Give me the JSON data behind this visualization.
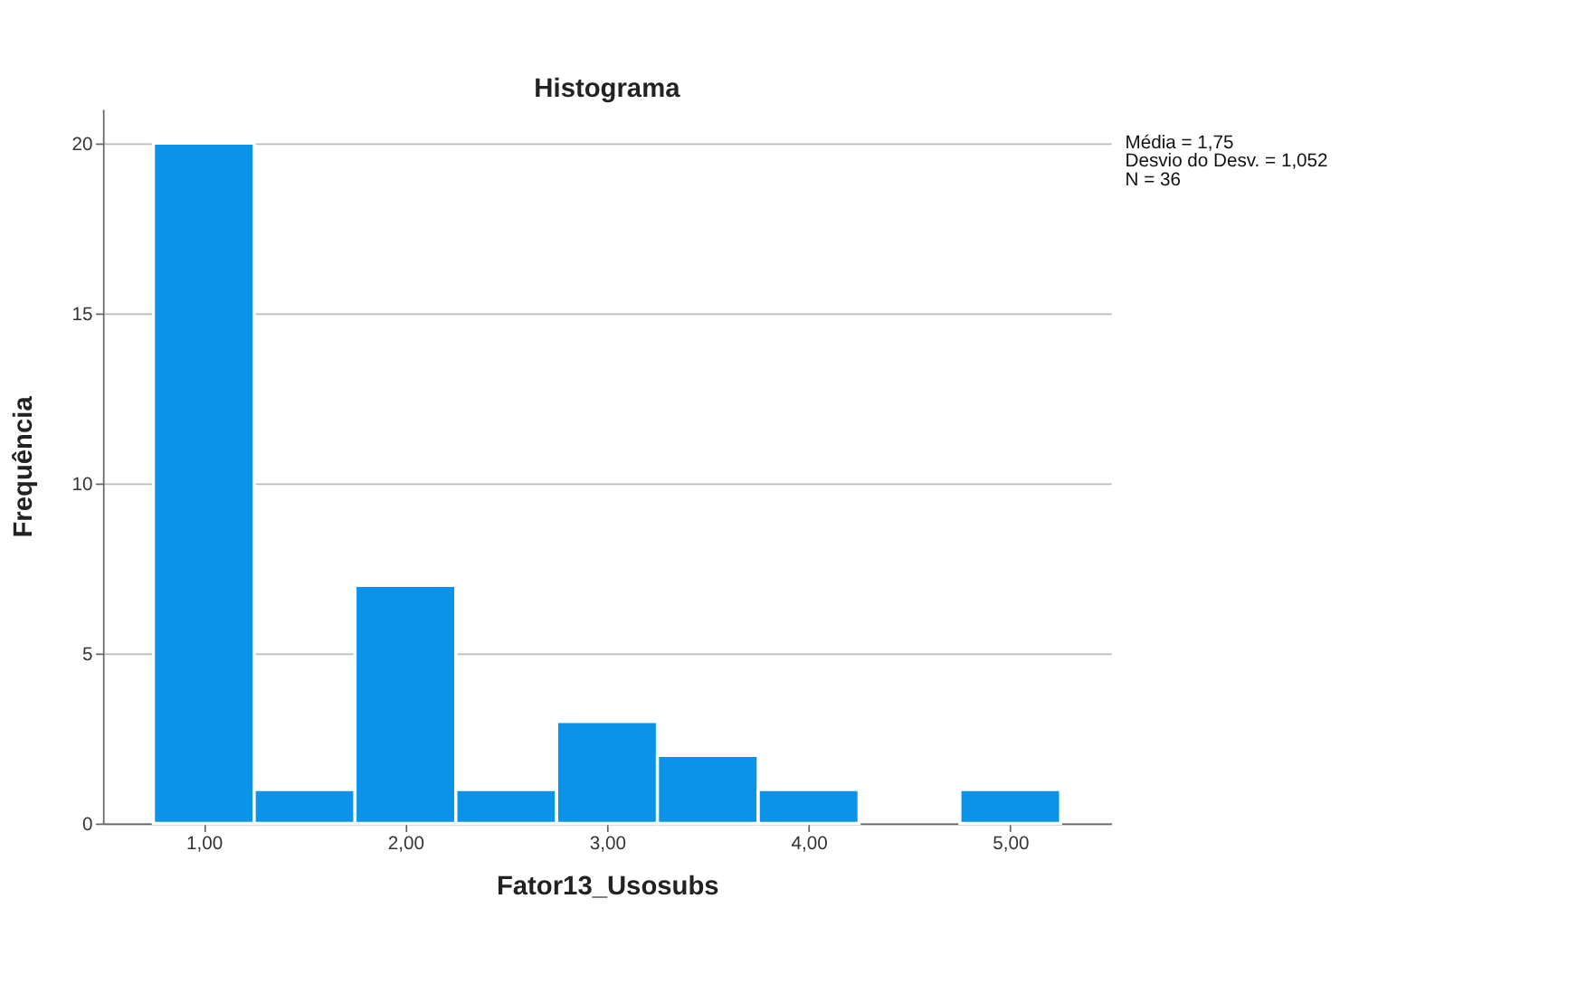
{
  "chart_data": {
    "type": "histogram",
    "title": "Histograma",
    "xlabel": "Fator13_Usosubs",
    "ylabel": "Frequência",
    "bins": [
      0.75,
      1.25,
      1.75,
      2.25,
      2.75,
      3.25,
      3.75,
      4.25,
      4.75,
      5.25
    ],
    "values": [
      20,
      1,
      7,
      1,
      3,
      2,
      1,
      0,
      1
    ],
    "color": "#0a93e8",
    "xlim": [
      0.5,
      5.5
    ],
    "xticks": [
      {
        "value": 1,
        "label": "1,00"
      },
      {
        "value": 2,
        "label": "2,00"
      },
      {
        "value": 3,
        "label": "3,00"
      },
      {
        "value": 4,
        "label": "4,00"
      },
      {
        "value": 5,
        "label": "5,00"
      }
    ],
    "ylim": [
      0,
      21
    ],
    "yticks": [
      0,
      5,
      10,
      15,
      20
    ],
    "grid": "y",
    "annotations": [
      "Média = 1,75",
      " Desvio do Desv. = 1,052",
      "N = 36"
    ]
  }
}
